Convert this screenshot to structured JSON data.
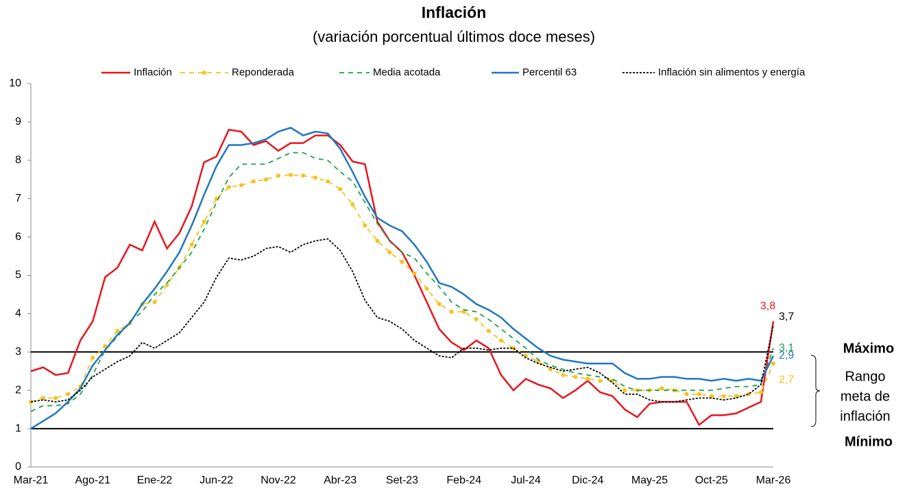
{
  "chart_data": {
    "type": "line",
    "title": "Inflación",
    "subtitle": "(variación porcentual últimos doce meses)",
    "categories": [
      "Mar-21",
      null,
      null,
      null,
      null,
      "Ago-21",
      null,
      null,
      null,
      null,
      "Ene-22",
      null,
      null,
      null,
      null,
      "Jun-22",
      null,
      null,
      null,
      null,
      "Nov-22",
      null,
      null,
      null,
      null,
      "Abr-23",
      null,
      null,
      null,
      null,
      "Set-23",
      null,
      null,
      null,
      null,
      "Feb-24",
      null,
      null,
      null,
      null,
      "Jul-24",
      null,
      null,
      null,
      null,
      "Dic-24",
      null,
      null,
      null,
      null,
      "May-25",
      null,
      null,
      null,
      null,
      "Oct-25",
      null,
      null,
      null,
      null,
      "Mar-26"
    ],
    "ylim": [
      0,
      10
    ],
    "yticks": [
      0,
      1,
      2,
      3,
      4,
      5,
      6,
      7,
      8,
      9,
      10
    ],
    "grid": false,
    "series": [
      {
        "name": "Inflación",
        "color": "#e8141c",
        "line_style": "solid",
        "markers": false,
        "values": [
          2.5,
          2.6,
          2.4,
          2.45,
          3.3,
          3.8,
          4.95,
          5.2,
          5.8,
          5.65,
          6.4,
          5.7,
          6.1,
          6.8,
          7.95,
          8.1,
          8.8,
          8.75,
          8.4,
          8.5,
          8.25,
          8.45,
          8.45,
          8.65,
          8.65,
          8.4,
          7.97,
          7.9,
          6.4,
          5.9,
          5.6,
          5.0,
          4.3,
          3.6,
          3.25,
          3.05,
          3.3,
          3.1,
          2.4,
          2.0,
          2.3,
          2.15,
          2.05,
          1.8,
          2.0,
          2.25,
          1.95,
          1.85,
          1.5,
          1.3,
          1.65,
          1.7,
          1.7,
          1.7,
          1.1,
          1.35,
          1.35,
          1.4,
          1.55,
          1.7,
          3.8
        ],
        "value_labels": [
          null,
          null,
          null,
          null,
          null,
          null,
          null,
          null,
          null,
          null,
          null,
          null,
          null,
          null,
          null,
          null,
          null,
          null,
          null,
          null,
          null,
          null,
          null,
          null,
          null,
          null,
          null,
          null,
          null,
          null,
          null,
          null,
          null,
          null,
          null,
          null,
          null,
          null,
          null,
          null,
          null,
          null,
          null,
          null,
          null,
          null,
          null,
          null,
          null,
          null,
          null,
          null,
          null,
          null,
          null,
          null,
          null,
          null,
          null,
          null,
          "3,8"
        ]
      },
      {
        "name": "Reponderada",
        "color": "#f5c21b",
        "line_style": "dashed",
        "markers": true,
        "values": [
          1.7,
          1.8,
          1.8,
          1.9,
          2.1,
          2.85,
          3.15,
          3.55,
          3.75,
          4.25,
          4.3,
          4.75,
          5.2,
          5.8,
          6.4,
          7.0,
          7.3,
          7.35,
          7.45,
          7.5,
          7.6,
          7.62,
          7.6,
          7.55,
          7.45,
          7.25,
          6.85,
          6.3,
          5.9,
          5.6,
          5.35,
          5.05,
          4.65,
          4.25,
          4.05,
          4.05,
          3.85,
          3.55,
          3.3,
          3.1,
          2.9,
          2.75,
          2.55,
          2.4,
          2.35,
          2.3,
          2.25,
          2.25,
          2.0,
          2.0,
          2.0,
          2.05,
          2.0,
          1.9,
          1.9,
          1.85,
          1.85,
          1.85,
          1.9,
          1.95,
          2.7
        ],
        "value_labels": [
          null,
          null,
          null,
          null,
          null,
          null,
          null,
          null,
          null,
          null,
          null,
          null,
          null,
          null,
          null,
          null,
          null,
          null,
          null,
          null,
          null,
          null,
          null,
          null,
          null,
          null,
          null,
          null,
          null,
          null,
          null,
          null,
          null,
          null,
          null,
          null,
          null,
          null,
          null,
          null,
          null,
          null,
          null,
          null,
          null,
          null,
          null,
          null,
          null,
          null,
          null,
          null,
          null,
          null,
          null,
          null,
          null,
          null,
          null,
          null,
          "2,7"
        ]
      },
      {
        "name": "Media acotada",
        "color": "#1aa34a",
        "line_style": "dashed",
        "markers": false,
        "values": [
          1.45,
          1.6,
          1.6,
          1.65,
          1.9,
          2.4,
          3.05,
          3.4,
          3.8,
          4.05,
          4.5,
          4.8,
          5.2,
          5.6,
          6.2,
          6.9,
          7.55,
          7.9,
          7.9,
          7.9,
          8.05,
          8.2,
          8.2,
          8.05,
          8.0,
          7.7,
          7.45,
          6.9,
          6.35,
          5.9,
          5.6,
          5.45,
          5.05,
          4.7,
          4.3,
          4.1,
          4.05,
          3.85,
          3.6,
          3.35,
          3.1,
          2.8,
          2.65,
          2.55,
          2.45,
          2.4,
          2.35,
          2.3,
          2.1,
          2.0,
          2.0,
          2.0,
          2.0,
          2.0,
          2.0,
          2.0,
          2.05,
          2.1,
          2.1,
          2.15,
          3.1
        ],
        "value_labels": [
          null,
          null,
          null,
          null,
          null,
          null,
          null,
          null,
          null,
          null,
          null,
          null,
          null,
          null,
          null,
          null,
          null,
          null,
          null,
          null,
          null,
          null,
          null,
          null,
          null,
          null,
          null,
          null,
          null,
          null,
          null,
          null,
          null,
          null,
          null,
          null,
          null,
          null,
          null,
          null,
          null,
          null,
          null,
          null,
          null,
          null,
          null,
          null,
          null,
          null,
          null,
          null,
          null,
          null,
          null,
          null,
          null,
          null,
          null,
          null,
          "3,1"
        ]
      },
      {
        "name": "Percentil 63",
        "color": "#1f77c0",
        "line_style": "solid",
        "markers": false,
        "values": [
          1.0,
          1.2,
          1.4,
          1.7,
          2.05,
          2.65,
          3.05,
          3.45,
          3.75,
          4.25,
          4.65,
          5.1,
          5.6,
          6.3,
          7.1,
          7.85,
          8.4,
          8.4,
          8.45,
          8.55,
          8.75,
          8.85,
          8.65,
          8.75,
          8.7,
          8.3,
          7.7,
          7.05,
          6.5,
          6.3,
          6.15,
          5.8,
          5.35,
          4.8,
          4.7,
          4.5,
          4.25,
          4.1,
          3.9,
          3.6,
          3.35,
          3.1,
          2.9,
          2.8,
          2.75,
          2.7,
          2.7,
          2.7,
          2.45,
          2.3,
          2.3,
          2.35,
          2.35,
          2.3,
          2.3,
          2.25,
          2.3,
          2.25,
          2.3,
          2.25,
          2.9
        ],
        "value_labels": [
          null,
          null,
          null,
          null,
          null,
          null,
          null,
          null,
          null,
          null,
          null,
          null,
          null,
          null,
          null,
          null,
          null,
          null,
          null,
          null,
          null,
          null,
          null,
          null,
          null,
          null,
          null,
          null,
          null,
          null,
          null,
          null,
          null,
          null,
          null,
          null,
          null,
          null,
          null,
          null,
          null,
          null,
          null,
          null,
          null,
          null,
          null,
          null,
          null,
          null,
          null,
          null,
          null,
          null,
          null,
          null,
          null,
          null,
          null,
          null,
          "2,9"
        ]
      },
      {
        "name": "Inflación sin alimentos y energía",
        "color": "#000000",
        "line_style": "dotted",
        "markers": false,
        "values": [
          1.7,
          1.75,
          1.7,
          1.75,
          2.0,
          2.35,
          2.55,
          2.75,
          2.9,
          3.25,
          3.1,
          3.3,
          3.5,
          3.9,
          4.3,
          4.95,
          5.45,
          5.4,
          5.5,
          5.7,
          5.75,
          5.6,
          5.8,
          5.9,
          5.95,
          5.65,
          5.1,
          4.35,
          3.9,
          3.8,
          3.6,
          3.3,
          3.1,
          2.9,
          2.85,
          3.1,
          3.1,
          3.05,
          3.1,
          3.1,
          2.85,
          2.7,
          2.6,
          2.5,
          2.55,
          2.6,
          2.45,
          2.2,
          1.9,
          1.9,
          1.75,
          1.7,
          1.7,
          1.75,
          1.8,
          1.8,
          1.75,
          1.8,
          1.9,
          2.15,
          3.7
        ],
        "value_labels": [
          null,
          null,
          null,
          null,
          null,
          null,
          null,
          null,
          null,
          null,
          null,
          null,
          null,
          null,
          null,
          null,
          null,
          null,
          null,
          null,
          null,
          null,
          null,
          null,
          null,
          null,
          null,
          null,
          null,
          null,
          null,
          null,
          null,
          null,
          null,
          null,
          null,
          null,
          null,
          null,
          null,
          null,
          null,
          null,
          null,
          null,
          null,
          null,
          null,
          null,
          null,
          null,
          null,
          null,
          null,
          null,
          null,
          null,
          null,
          null,
          "3,7"
        ]
      }
    ],
    "target_band": {
      "max": 3,
      "min": 1,
      "max_label": "Máximo",
      "min_label": "Mínimo",
      "label": [
        "Rango",
        "meta de",
        "inflación"
      ]
    }
  }
}
